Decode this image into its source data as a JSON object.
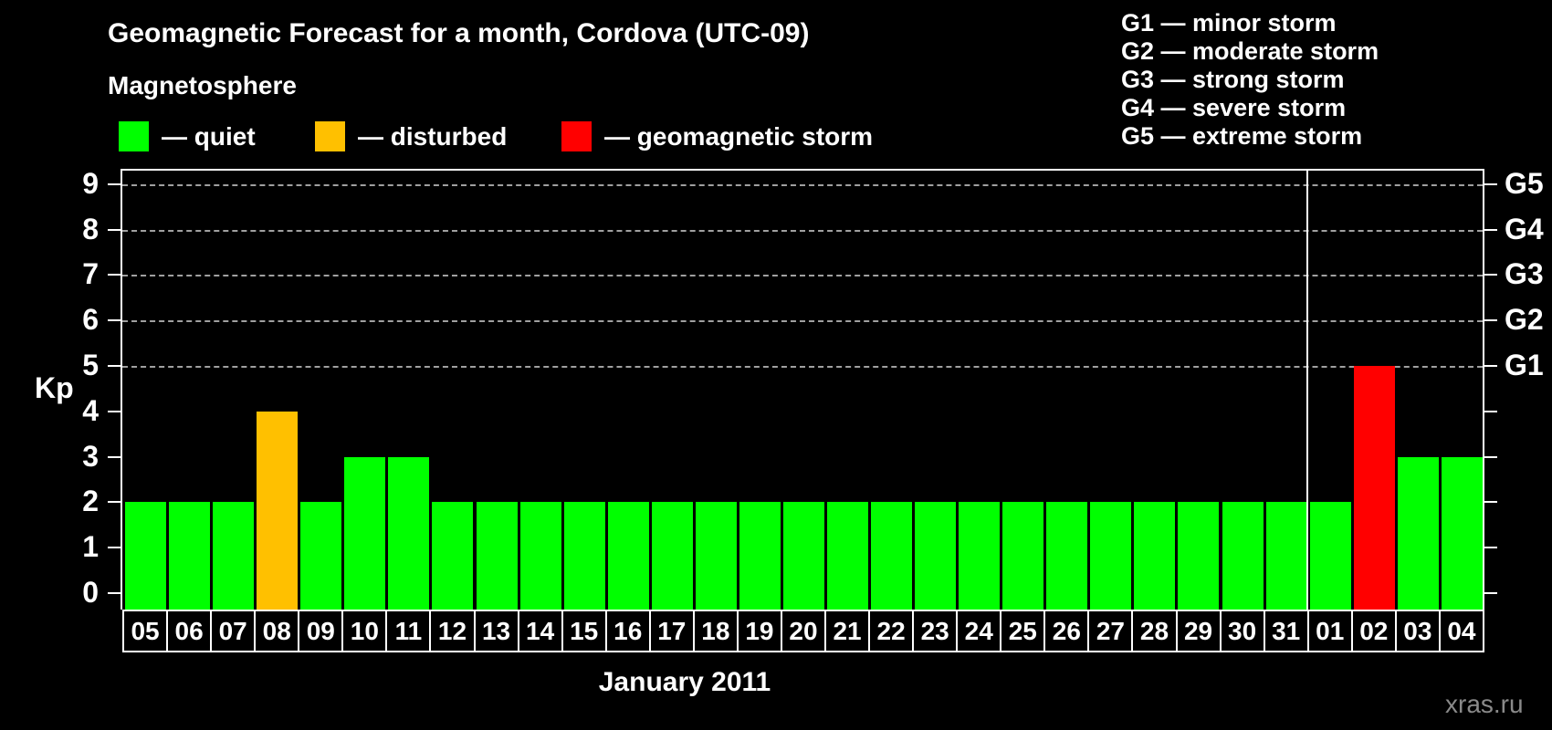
{
  "header": {
    "title": "Geomagnetic Forecast for a month, Cordova (UTC-09)",
    "legend_title": "Magnetosphere",
    "legend": [
      {
        "status": "quiet",
        "label": "— quiet",
        "color": "#00ff00"
      },
      {
        "status": "disturbed",
        "label": "— disturbed",
        "color": "#ffc000"
      },
      {
        "status": "storm",
        "label": "— geomagnetic storm",
        "color": "#ff0000"
      }
    ],
    "g_scale_legend": [
      "G1 — minor storm",
      "G2 — moderate storm",
      "G3 — strong storm",
      "G4 — severe storm",
      "G5 — extreme storm"
    ]
  },
  "chart_data": {
    "type": "bar",
    "title": "Geomagnetic Forecast for a month, Cordova (UTC-09)",
    "xlabel": "January 2011",
    "ylabel": "Kp",
    "ylim": [
      0,
      9.3
    ],
    "yticks": [
      0,
      1,
      2,
      3,
      4,
      5,
      6,
      7,
      8,
      9
    ],
    "gridlines_at": [
      5,
      6,
      7,
      8,
      9
    ],
    "grid_style": "dashed",
    "legend_position": "top",
    "right_axis_labels": [
      {
        "kp": 5,
        "label": "G1"
      },
      {
        "kp": 6,
        "label": "G2"
      },
      {
        "kp": 7,
        "label": "G3"
      },
      {
        "kp": 8,
        "label": "G4"
      },
      {
        "kp": 9,
        "label": "G5"
      }
    ],
    "categories": [
      "05",
      "06",
      "07",
      "08",
      "09",
      "10",
      "11",
      "12",
      "13",
      "14",
      "15",
      "16",
      "17",
      "18",
      "19",
      "20",
      "21",
      "22",
      "23",
      "24",
      "25",
      "26",
      "27",
      "28",
      "29",
      "30",
      "31",
      "01",
      "02",
      "03",
      "04"
    ],
    "values": [
      2,
      2,
      2,
      4,
      2,
      3,
      3,
      2,
      2,
      2,
      2,
      2,
      2,
      2,
      2,
      2,
      2,
      2,
      2,
      2,
      2,
      2,
      2,
      2,
      2,
      2,
      2,
      2,
      5,
      3,
      3
    ],
    "statuses": [
      "quiet",
      "quiet",
      "quiet",
      "disturbed",
      "quiet",
      "quiet",
      "quiet",
      "quiet",
      "quiet",
      "quiet",
      "quiet",
      "quiet",
      "quiet",
      "quiet",
      "quiet",
      "quiet",
      "quiet",
      "quiet",
      "quiet",
      "quiet",
      "quiet",
      "quiet",
      "quiet",
      "quiet",
      "quiet",
      "quiet",
      "quiet",
      "quiet",
      "storm",
      "quiet",
      "quiet"
    ],
    "colors": {
      "quiet": "#00ff00",
      "disturbed": "#ffc000",
      "storm": "#ff0000"
    },
    "separator_after_index": 26
  },
  "footer": {
    "month_label": "January 2011",
    "watermark": "xras.ru"
  }
}
